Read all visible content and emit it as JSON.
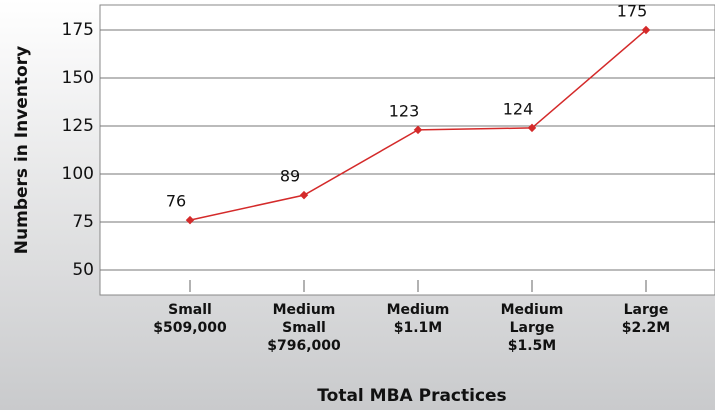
{
  "chart_data": {
    "type": "line",
    "x_label": "Total MBA Practices",
    "y_label": "Numbers in Inventory",
    "categories": [
      [
        "Small",
        "$509,000"
      ],
      [
        "Medium",
        "Small",
        "$796,000"
      ],
      [
        "Medium",
        "$1.1M"
      ],
      [
        "Medium",
        "Large",
        "$1.5M"
      ],
      [
        "Large",
        "$2.2M"
      ]
    ],
    "values": [
      76,
      89,
      123,
      124,
      175
    ],
    "color": "#d42a2a",
    "ylim": [
      50,
      175
    ],
    "yticks": [
      50,
      75,
      100,
      125,
      150,
      175
    ],
    "grid": true
  }
}
